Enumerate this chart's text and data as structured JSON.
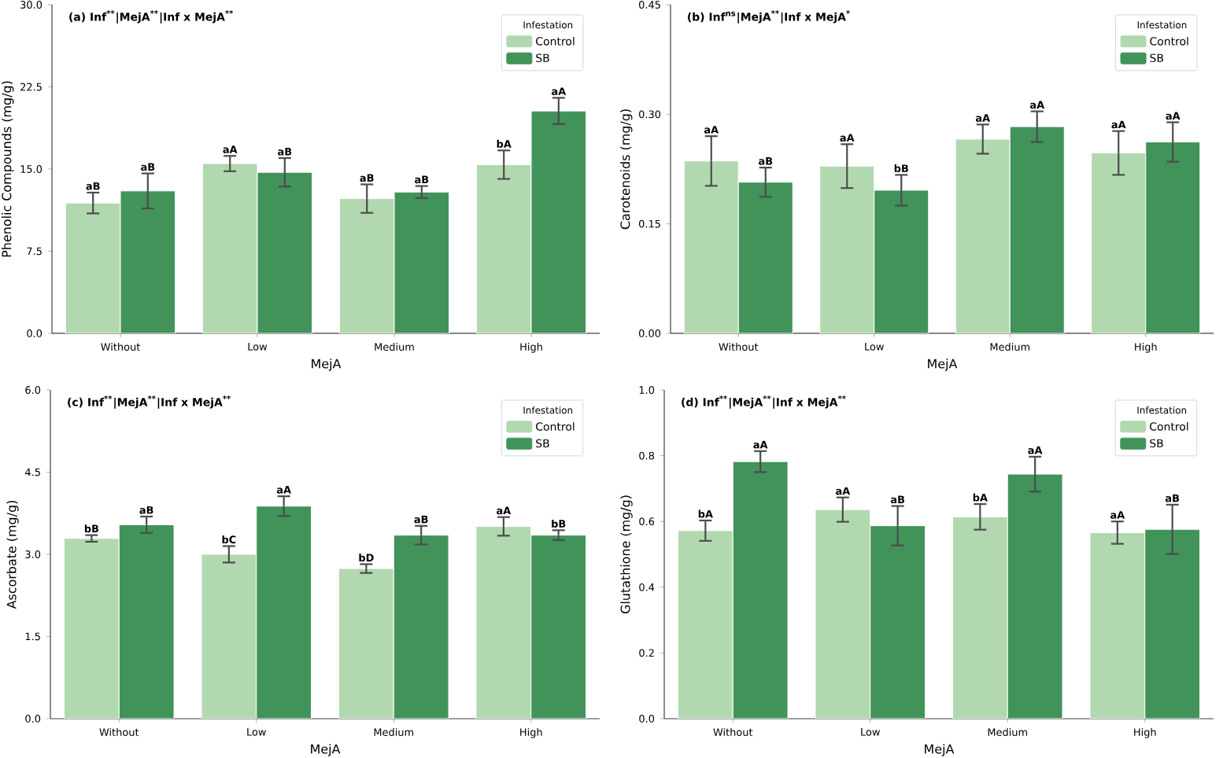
{
  "chart_data": [
    {
      "type": "bar",
      "title": "(a)   Inf$^{**}$|MejA$^{**}$|Inf x MejA$^{**}$",
      "xlabel": "MejA",
      "ylabel": "Phenolic Compounds (mg/g)",
      "legend_title": "Infestation",
      "legend": "top right",
      "categories": [
        "Without",
        "Low",
        "Medium",
        "High"
      ],
      "ylim": [
        0,
        30
      ],
      "yticks": [
        {
          "value": 0,
          "label": "0.0"
        },
        7.5,
        {
          "value": 15,
          "label": "15.0"
        },
        22.5,
        {
          "value": 30,
          "label": "30.0"
        }
      ],
      "series": [
        {
          "name": "Control",
          "color": "#b2d8b0",
          "values": [
            11.9,
            15.5,
            12.3,
            15.4
          ],
          "errors": [
            0.95,
            0.7,
            1.3,
            1.3
          ],
          "value_labels": [
            "aB",
            "aA",
            "aB",
            "bA"
          ]
        },
        {
          "name": "SB",
          "color": "#41935a",
          "values": [
            13.0,
            14.7,
            12.9,
            20.3
          ],
          "errors": [
            1.6,
            1.3,
            0.55,
            1.2
          ],
          "value_labels": [
            "aB",
            "aB",
            "aB",
            "aA"
          ]
        }
      ]
    },
    {
      "type": "bar",
      "title": "(b)   Inf$^{ns}$|MejA$^{**}$|Inf x MejA$^{*}$",
      "xlabel": "MejA",
      "ylabel": "Carotenoids (mg/g)",
      "legend_title": "Infestation",
      "legend": "top right",
      "categories": [
        "Without",
        "Low",
        "Medium",
        "High"
      ],
      "ylim": [
        0,
        0.45
      ],
      "yticks": [
        {
          "value": 0,
          "label": "0.00"
        },
        0.15,
        {
          "value": 0.3,
          "label": "0.30"
        },
        0.45
      ],
      "series": [
        {
          "name": "Control",
          "color": "#b2d8b0",
          "values": [
            0.236,
            0.229,
            0.266,
            0.247
          ],
          "errors": [
            0.034,
            0.03,
            0.02,
            0.03
          ],
          "value_labels": [
            "aA",
            "aA",
            "aA",
            "aA"
          ]
        },
        {
          "name": "SB",
          "color": "#41935a",
          "values": [
            0.207,
            0.196,
            0.283,
            0.262
          ],
          "errors": [
            0.02,
            0.021,
            0.021,
            0.027
          ],
          "value_labels": [
            "aB",
            "bB",
            "aA",
            "aA"
          ]
        }
      ]
    },
    {
      "type": "bar",
      "title": "(c)   Inf$^{**}$|MejA$^{**}$|Inf x MejA$^{**}$",
      "xlabel": "MejA",
      "ylabel": "Ascorbate (mg/g)",
      "legend_title": "Infestation",
      "legend": "top right",
      "categories": [
        "Without",
        "Low",
        "Medium",
        "High"
      ],
      "ylim": [
        0,
        6
      ],
      "yticks": [
        {
          "value": 0,
          "label": "0.0"
        },
        1.5,
        {
          "value": 3,
          "label": "3.0"
        },
        4.5,
        {
          "value": 6,
          "label": "6.0"
        }
      ],
      "series": [
        {
          "name": "Control",
          "color": "#b2d8b0",
          "values": [
            3.29,
            3.0,
            2.74,
            3.51
          ],
          "errors": [
            0.06,
            0.15,
            0.08,
            0.17
          ],
          "value_labels": [
            "bB",
            "bC",
            "bD",
            "aA"
          ]
        },
        {
          "name": "SB",
          "color": "#41935a",
          "values": [
            3.54,
            3.88,
            3.35,
            3.35
          ],
          "errors": [
            0.15,
            0.18,
            0.17,
            0.09
          ],
          "value_labels": [
            "aB",
            "aA",
            "aB",
            "bB"
          ]
        }
      ]
    },
    {
      "type": "bar",
      "title": "(d)   Inf$^{**}$|MejA$^{**}$|Inf x MejA$^{**}$",
      "xlabel": "MejA",
      "ylabel": "Glutathione (mg/g)",
      "legend_title": "Infestation",
      "legend": "top right",
      "categories": [
        "Without",
        "Low",
        "Medium",
        "High"
      ],
      "ylim": [
        0,
        1
      ],
      "yticks": [
        {
          "value": 0,
          "label": "0.0"
        },
        0.2,
        0.4,
        0.6,
        0.8,
        {
          "value": 1,
          "label": "1.0"
        }
      ],
      "series": [
        {
          "name": "Control",
          "color": "#b2d8b0",
          "values": [
            0.572,
            0.636,
            0.614,
            0.566
          ],
          "errors": [
            0.031,
            0.037,
            0.039,
            0.034
          ],
          "value_labels": [
            "bA",
            "aA",
            "bA",
            "aA"
          ]
        },
        {
          "name": "SB",
          "color": "#41935a",
          "values": [
            0.782,
            0.587,
            0.744,
            0.576
          ],
          "errors": [
            0.032,
            0.06,
            0.053,
            0.075
          ],
          "value_labels": [
            "aA",
            "aB",
            "aA",
            "aB"
          ]
        }
      ]
    }
  ]
}
